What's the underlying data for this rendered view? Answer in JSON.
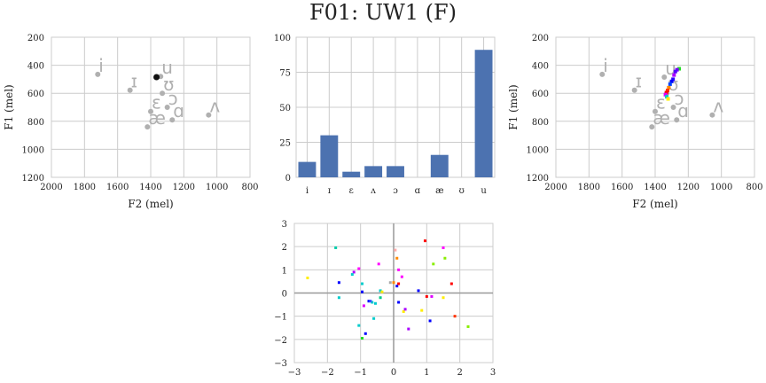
{
  "title": "F01: UW1 (F)",
  "colors": {
    "grid": "#cccccc",
    "gray": "#b0b0b0",
    "bar": "#4c72b0",
    "black": "#111111",
    "axis_zero": "#999999"
  },
  "vowel_plot_left": {
    "xlabel": "F2 (mel)",
    "ylabel": "F1 (mel)",
    "xlim": [
      2000,
      800
    ],
    "ylim": [
      1200,
      200
    ],
    "xticks": [
      "2000",
      "1800",
      "1600",
      "1400",
      "1200",
      "1000",
      "800"
    ],
    "yticks": [
      "200",
      "400",
      "600",
      "800",
      "1000",
      "1200"
    ],
    "vowels": [
      {
        "label": "i",
        "f2": 1720,
        "f1": 465
      },
      {
        "label": "ɪ",
        "f2": 1525,
        "f1": 578
      },
      {
        "label": "u",
        "f2": 1340,
        "f1": 480
      },
      {
        "label": "ʊ",
        "f2": 1330,
        "f1": 600
      },
      {
        "label": "ɛ",
        "f2": 1400,
        "f1": 730
      },
      {
        "label": "ɔ",
        "f2": 1300,
        "f1": 700
      },
      {
        "label": "ɑ",
        "f2": 1270,
        "f1": 790
      },
      {
        "label": "æ",
        "f2": 1420,
        "f1": 840
      },
      {
        "label": "ʌ",
        "f2": 1050,
        "f1": 755
      }
    ],
    "highlight": {
      "f2": 1365,
      "f1": 485
    }
  },
  "bar_chart": {
    "type": "bar",
    "categories": [
      "i",
      "ɪ",
      "ɛ",
      "ʌ",
      "ɔ",
      "ɑ",
      "æ",
      "ʊ",
      "u"
    ],
    "values": [
      11,
      30,
      4,
      8,
      8,
      0,
      16,
      0,
      91
    ],
    "ylim": [
      0,
      100
    ],
    "yticks": [
      "0",
      "25",
      "50",
      "75",
      "100"
    ]
  },
  "vowel_plot_right": {
    "xlabel": "F2 (mel)",
    "ylabel": "F1 (mel)",
    "xlim": [
      2000,
      800
    ],
    "ylim": [
      1200,
      200
    ],
    "xticks": [
      "2000",
      "1800",
      "1600",
      "1400",
      "1200",
      "1000",
      "800"
    ],
    "yticks": [
      "200",
      "400",
      "600",
      "800",
      "1000",
      "1200"
    ],
    "vowels": [
      {
        "label": "i",
        "f2": 1720,
        "f1": 465
      },
      {
        "label": "ɪ",
        "f2": 1525,
        "f1": 578
      },
      {
        "label": "u",
        "f2": 1345,
        "f1": 485
      },
      {
        "label": "ʊ",
        "f2": 1330,
        "f1": 600
      },
      {
        "label": "ɛ",
        "f2": 1400,
        "f1": 730
      },
      {
        "label": "ɔ",
        "f2": 1290,
        "f1": 700
      },
      {
        "label": "ɑ",
        "f2": 1270,
        "f1": 790
      },
      {
        "label": "æ",
        "f2": 1420,
        "f1": 840
      },
      {
        "label": "ʌ",
        "f2": 1055,
        "f1": 755
      }
    ],
    "trajectory": [
      {
        "f2": 1255,
        "f1": 425,
        "color": "#22dd22"
      },
      {
        "f2": 1268,
        "f1": 432,
        "color": "#7700ff"
      },
      {
        "f2": 1278,
        "f1": 445,
        "color": "#5500ff"
      },
      {
        "f2": 1286,
        "f1": 470,
        "color": "#aa00ff"
      },
      {
        "f2": 1292,
        "f1": 500,
        "color": "#3300ff"
      },
      {
        "f2": 1300,
        "f1": 515,
        "color": "#0000ff"
      },
      {
        "f2": 1310,
        "f1": 535,
        "color": "#0044ff"
      },
      {
        "f2": 1318,
        "f1": 560,
        "color": "#ff8800"
      },
      {
        "f2": 1325,
        "f1": 580,
        "color": "#ff3300"
      },
      {
        "f2": 1332,
        "f1": 595,
        "color": "#ff0000"
      },
      {
        "f2": 1338,
        "f1": 610,
        "color": "#dd00ff"
      },
      {
        "f2": 1330,
        "f1": 625,
        "color": "#00cccc"
      },
      {
        "f2": 1322,
        "f1": 640,
        "color": "#ffee00"
      }
    ]
  },
  "scatter": {
    "type": "scatter",
    "xlim": [
      -3,
      3
    ],
    "ylim": [
      -3,
      3
    ],
    "xticks": [
      "−3",
      "−2",
      "−1",
      "0",
      "1",
      "2",
      "3"
    ],
    "yticks": [
      "−3",
      "−2",
      "−1",
      "0",
      "1",
      "2",
      "3"
    ],
    "points": [
      {
        "x": -1.75,
        "y": 1.95,
        "color": "#00ccaa"
      },
      {
        "x": -2.6,
        "y": 0.65,
        "color": "#ffee00"
      },
      {
        "x": -1.65,
        "y": 0.45,
        "color": "#0000ff"
      },
      {
        "x": -1.65,
        "y": -0.2,
        "color": "#00cccc"
      },
      {
        "x": -1.2,
        "y": 0.9,
        "color": "#aa00ff"
      },
      {
        "x": -1.25,
        "y": 0.8,
        "color": "#00cccc"
      },
      {
        "x": -1.05,
        "y": 1.05,
        "color": "#ff00ff"
      },
      {
        "x": -0.95,
        "y": 0.4,
        "color": "#00cccc"
      },
      {
        "x": -0.95,
        "y": 0.05,
        "color": "#0000ff"
      },
      {
        "x": -0.9,
        "y": -0.55,
        "color": "#dd00ff"
      },
      {
        "x": -0.75,
        "y": -0.35,
        "color": "#0000ff"
      },
      {
        "x": -0.65,
        "y": -0.4,
        "color": "#00cccc"
      },
      {
        "x": -0.55,
        "y": -0.45,
        "color": "#00cccc"
      },
      {
        "x": -0.7,
        "y": -0.35,
        "color": "#3355ff"
      },
      {
        "x": -0.6,
        "y": -1.1,
        "color": "#00cccc"
      },
      {
        "x": -1.05,
        "y": -1.4,
        "color": "#00cccc"
      },
      {
        "x": -0.85,
        "y": -1.75,
        "color": "#0000ff"
      },
      {
        "x": -0.95,
        "y": -1.95,
        "color": "#22dd22"
      },
      {
        "x": -0.45,
        "y": 1.25,
        "color": "#ff00ff"
      },
      {
        "x": -0.4,
        "y": 0.1,
        "color": "#00cccc"
      },
      {
        "x": -0.4,
        "y": -0.2,
        "color": "#00cc88"
      },
      {
        "x": -0.35,
        "y": 0.05,
        "color": "#ffee00"
      },
      {
        "x": -0.1,
        "y": 0.45,
        "color": "#aaaaaa"
      },
      {
        "x": 0.0,
        "y": 0.45,
        "color": "#ff8800"
      },
      {
        "x": 0.05,
        "y": 1.85,
        "color": "#ffaaaa"
      },
      {
        "x": 0.1,
        "y": 1.5,
        "color": "#ff8800"
      },
      {
        "x": 0.1,
        "y": 0.3,
        "color": "#0000ff"
      },
      {
        "x": 0.15,
        "y": 1.0,
        "color": "#ff00ff"
      },
      {
        "x": 0.15,
        "y": 0.4,
        "color": "#ff0000"
      },
      {
        "x": 0.15,
        "y": -0.4,
        "color": "#0000ff"
      },
      {
        "x": 0.25,
        "y": 0.7,
        "color": "#ff00ff"
      },
      {
        "x": 0.3,
        "y": -0.8,
        "color": "#ffee00"
      },
      {
        "x": 0.35,
        "y": -0.7,
        "color": "#aa00ff"
      },
      {
        "x": 0.45,
        "y": -1.55,
        "color": "#aa00ff"
      },
      {
        "x": 0.75,
        "y": 0.1,
        "color": "#0000ff"
      },
      {
        "x": 0.85,
        "y": -0.75,
        "color": "#ffee00"
      },
      {
        "x": 0.95,
        "y": 2.25,
        "color": "#ff0000"
      },
      {
        "x": 1.0,
        "y": -0.15,
        "color": "#ff0000"
      },
      {
        "x": 1.1,
        "y": -1.2,
        "color": "#0000ff"
      },
      {
        "x": 1.15,
        "y": -0.15,
        "color": "#dd00ff"
      },
      {
        "x": 1.2,
        "y": 1.25,
        "color": "#88ee00"
      },
      {
        "x": 1.5,
        "y": 1.95,
        "color": "#ff00ff"
      },
      {
        "x": 1.55,
        "y": 1.5,
        "color": "#88ee00"
      },
      {
        "x": 1.5,
        "y": -0.2,
        "color": "#ffee00"
      },
      {
        "x": 1.75,
        "y": 0.4,
        "color": "#ff0000"
      },
      {
        "x": 1.85,
        "y": -1.0,
        "color": "#ff3300"
      },
      {
        "x": 2.25,
        "y": -1.45,
        "color": "#88ee00"
      }
    ]
  }
}
